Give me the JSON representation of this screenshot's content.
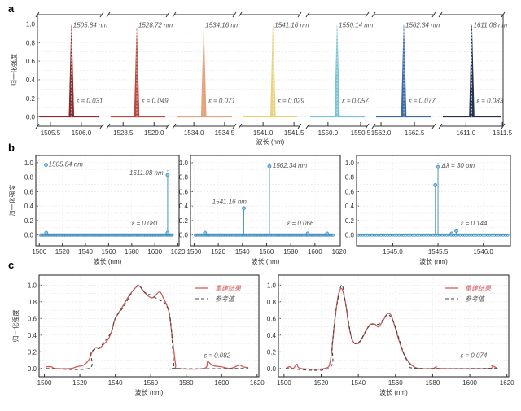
{
  "panel_labels": [
    "a",
    "b",
    "c"
  ],
  "ylabel": "归一化强度",
  "xlabel": "波长 (nm)",
  "legend": {
    "reconstructed": "重建结果",
    "reference": "参考值"
  },
  "colors": {
    "recon": "#d05a5a",
    "reference": "#444444",
    "stem": "#3f8fbf",
    "segments": [
      "#8b2b2b",
      "#b8493f",
      "#e2a27e",
      "#e9d27c",
      "#7cc2d2",
      "#3d6aa3",
      "#22324f"
    ]
  },
  "chart_data": [
    {
      "id": "a",
      "type": "line",
      "ylim": [
        -0.1,
        1.1
      ],
      "yticks": [
        "0.0",
        "0.2",
        "0.4",
        "0.6",
        "0.8",
        "1.0"
      ],
      "segments": [
        {
          "xlim": [
            1505.29,
            1506.33
          ],
          "ticks": [
            "1505.5",
            "1506.0"
          ],
          "peak": 1505.84,
          "height": 1.0,
          "label": "1505.84 nm",
          "eps": "ε = 0.031"
        },
        {
          "xlim": [
            1528.26,
            1529.22
          ],
          "ticks": [
            "1528.5",
            "1529.0"
          ],
          "peak": 1528.72,
          "height": 0.96,
          "label": "1528.72 nm",
          "eps": "ε = 0.049"
        },
        {
          "xlim": [
            1533.68,
            1534.66
          ],
          "ticks": [
            "1534.0",
            "1534.5"
          ],
          "peak": 1534.16,
          "height": 0.94,
          "label": "1534.16 nm",
          "eps": "ε = 0.071"
        },
        {
          "xlim": [
            1540.63,
            1541.59
          ],
          "ticks": [
            "1541.0",
            "1541.5"
          ],
          "peak": 1541.16,
          "height": 1.0,
          "label": "1541.16 nm",
          "eps": "ε = 0.029"
        },
        {
          "xlim": [
            1549.69,
            1550.6
          ],
          "ticks": [
            "1550.0",
            "1550.5"
          ],
          "peak": 1550.14,
          "height": 1.0,
          "label": "1550.14 nm",
          "eps": "ε = 0.057"
        },
        {
          "xlim": [
            1561.89,
            1562.79
          ],
          "ticks": [
            "1562.0",
            "1562.5"
          ],
          "peak": 1562.34,
          "height": 1.0,
          "label": "1562.34 nm",
          "eps": "ε = 0.077"
        },
        {
          "xlim": [
            1610.65,
            1611.51
          ],
          "ticks": [
            "1611.0",
            "1611.5"
          ],
          "peak": 1611.08,
          "height": 1.0,
          "label": "1611.08 nm",
          "eps": "ε = 0.083"
        }
      ]
    },
    {
      "id": "b1",
      "type": "scatter",
      "xlim": [
        1497,
        1621
      ],
      "ylim": [
        -0.15,
        1.1
      ],
      "xticks": [
        "1500",
        "1520",
        "1540",
        "1560",
        "1580",
        "1600",
        "1620"
      ],
      "yticks": [
        "0.0",
        "0.2",
        "0.4",
        "0.6",
        "0.8",
        "1.0"
      ],
      "baseline": [
        1501,
        1615,
        1
      ],
      "stems": [
        {
          "x": 1505.84,
          "y": 0.97,
          "ref": 1.0
        },
        {
          "x": 1611.08,
          "y": 0.83,
          "ref": 0.9
        },
        {
          "x": 1506,
          "y": 0.03
        },
        {
          "x": 1611,
          "y": 0.03
        }
      ],
      "annotations": [
        {
          "text": "1505.84 nm",
          "x": 1508,
          "y": 0.95
        },
        {
          "text": "1611.08 nm",
          "x": 1578,
          "y": 0.83
        },
        {
          "text": "ε = 0.081",
          "x": 1580,
          "y": 0.13
        }
      ]
    },
    {
      "id": "b2",
      "type": "scatter",
      "xlim": [
        1497,
        1621
      ],
      "ylim": [
        -0.15,
        1.1
      ],
      "xticks": [
        "1500",
        "1520",
        "1540",
        "1560",
        "1580",
        "1600",
        "1620"
      ],
      "yticks": [
        "0.0",
        "0.2",
        "0.4",
        "0.6",
        "0.8",
        "1.0"
      ],
      "baseline": [
        1501,
        1615,
        1
      ],
      "stems": [
        {
          "x": 1541.16,
          "y": 0.37
        },
        {
          "x": 1562.34,
          "y": 0.95,
          "ref": 1.0
        },
        {
          "x": 1509,
          "y": 0.03
        },
        {
          "x": 1594,
          "y": 0.02
        },
        {
          "x": 1610,
          "y": 0.02
        }
      ],
      "annotations": [
        {
          "text": "1541.16 nm",
          "x": 1515,
          "y": 0.43
        },
        {
          "text": "1562.34 nm",
          "x": 1565,
          "y": 0.93
        },
        {
          "text": "ε = 0.066",
          "x": 1577,
          "y": 0.13
        }
      ]
    },
    {
      "id": "b3",
      "type": "scatter",
      "xlim": [
        1544.6,
        1546.3
      ],
      "ylim": [
        -0.15,
        1.1
      ],
      "xticks": [
        "1545.0",
        "1545.5",
        "1546.0"
      ],
      "yticks": [
        "0.0",
        "0.2",
        "0.4",
        "0.6",
        "0.8",
        "1.0"
      ],
      "baseline": [
        1544.62,
        1546.28,
        0.025
      ],
      "stems": [
        {
          "x": 1545.47,
          "y": 0.69
        },
        {
          "x": 1545.5,
          "y": 0.94,
          "ref": 1.0
        },
        {
          "x": 1545.65,
          "y": 0.02
        },
        {
          "x": 1545.7,
          "y": 0.06
        }
      ],
      "annotations": [
        {
          "text": "Δλ = 30 pm",
          "x": 1545.54,
          "y": 0.93
        },
        {
          "text": "ε = 0.144",
          "x": 1545.75,
          "y": 0.13
        }
      ]
    },
    {
      "id": "c1",
      "type": "line",
      "xlim": [
        1497,
        1621
      ],
      "ylim": [
        -0.1,
        1.12
      ],
      "xticks": [
        "1500",
        "1520",
        "1540",
        "1560",
        "1580",
        "1600",
        "1620"
      ],
      "yticks": [
        "0.0",
        "0.2",
        "0.4",
        "0.6",
        "0.8",
        "1.0"
      ],
      "eps": {
        "text": "ε = 0.082",
        "x": 1590,
        "y": 0.13
      },
      "series": [
        {
          "name": "重建结果",
          "x": [
            1501,
            1504,
            1506,
            1515,
            1518,
            1522,
            1525,
            1527,
            1529,
            1531,
            1533,
            1536,
            1538,
            1540,
            1544,
            1548,
            1552,
            1554,
            1557,
            1560,
            1562,
            1565,
            1567,
            1570,
            1572,
            1574,
            1575,
            1590,
            1592,
            1594,
            1596,
            1600,
            1605,
            1610,
            1612,
            1615
          ],
          "y": [
            0.02,
            0.02,
            0,
            0,
            0.02,
            0.04,
            0.1,
            0.2,
            0.25,
            0.24,
            0.28,
            0.35,
            0.45,
            0.6,
            0.74,
            0.88,
            0.98,
            0.98,
            0.9,
            0.85,
            0.86,
            0.92,
            0.85,
            0.7,
            0.4,
            0.05,
            0,
            0,
            0.08,
            0.05,
            0.03,
            0.02,
            0,
            0.04,
            0.02,
            0.01
          ]
        },
        {
          "name": "参考值",
          "x": [
            1501,
            1525,
            1526,
            1528,
            1531,
            1535,
            1538,
            1540,
            1545,
            1549,
            1553,
            1556,
            1560,
            1565,
            1568,
            1571,
            1573,
            1574,
            1615
          ],
          "y": [
            0,
            0,
            0.18,
            0.22,
            0.25,
            0.35,
            0.45,
            0.6,
            0.75,
            0.9,
            1.0,
            0.92,
            0.88,
            0.82,
            0.78,
            0.6,
            0.05,
            0,
            0
          ]
        }
      ]
    },
    {
      "id": "c2",
      "type": "line",
      "xlim": [
        1497,
        1621
      ],
      "ylim": [
        -0.1,
        1.12
      ],
      "xticks": [
        "1500",
        "1520",
        "1540",
        "1560",
        "1580",
        "1600",
        "1620"
      ],
      "yticks": [
        "0.0",
        "0.2",
        "0.4",
        "0.6",
        "0.8",
        "1.0"
      ],
      "eps": {
        "text": "ε = 0.074",
        "x": 1595,
        "y": 0.13
      },
      "series": [
        {
          "name": "重建结果",
          "x": [
            1501,
            1503,
            1505,
            1507,
            1509,
            1522,
            1525,
            1527,
            1529,
            1531,
            1533,
            1535,
            1537,
            1540,
            1543,
            1546,
            1549,
            1551,
            1554,
            1556,
            1558,
            1561,
            1564,
            1567,
            1570,
            1573,
            1580,
            1582,
            1584,
            1610,
            1612,
            1615
          ],
          "y": [
            0,
            0.02,
            0,
            0.05,
            0,
            0,
            0.1,
            0.5,
            0.85,
            0.96,
            0.8,
            0.5,
            0.33,
            0.3,
            0.4,
            0.52,
            0.53,
            0.5,
            0.6,
            0.66,
            0.62,
            0.4,
            0.2,
            0.08,
            0.02,
            0,
            0,
            0.02,
            0,
            0,
            0.03,
            0
          ]
        },
        {
          "name": "参考值",
          "x": [
            1501,
            1524,
            1526,
            1528,
            1531,
            1533,
            1536,
            1538,
            1541,
            1544,
            1547,
            1551,
            1553,
            1556,
            1559,
            1562,
            1565,
            1568,
            1572,
            1615
          ],
          "y": [
            0,
            0,
            0.3,
            0.7,
            1.0,
            0.8,
            0.4,
            0.3,
            0.33,
            0.45,
            0.53,
            0.53,
            0.58,
            0.65,
            0.55,
            0.35,
            0.15,
            0.05,
            0,
            0
          ]
        }
      ]
    }
  ]
}
